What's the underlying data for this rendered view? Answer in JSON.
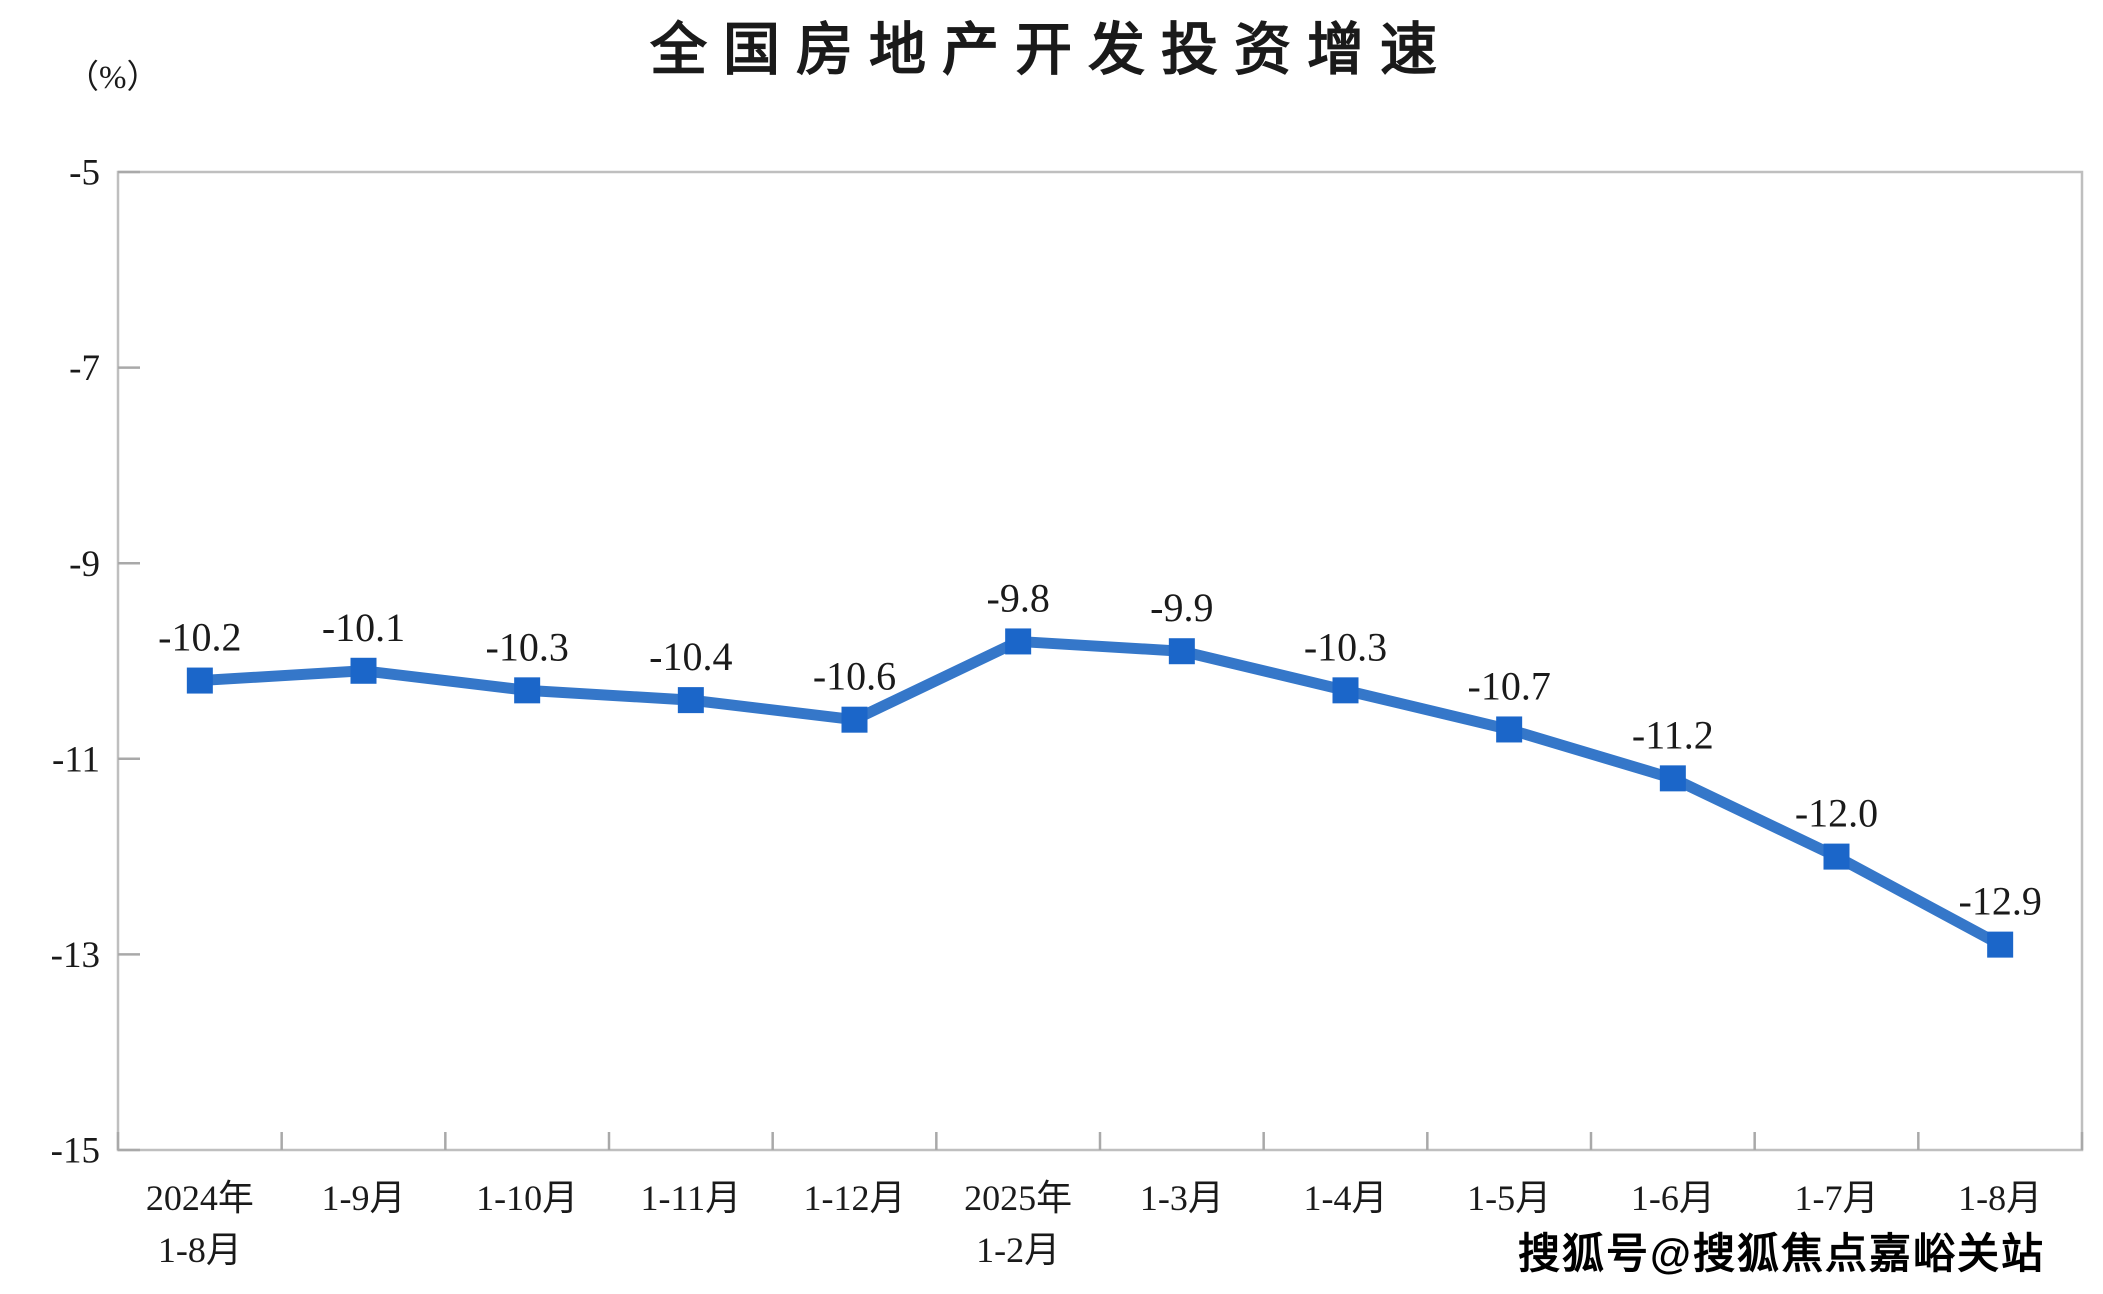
{
  "page": {
    "watermark": "搜狐号@搜狐焦点嘉峪关站"
  },
  "chart_data": {
    "type": "line",
    "title": "全国房地产开发投资增速",
    "unit": "（%）",
    "categories": [
      "2024年\n1-8月",
      "1-9月",
      "1-10月",
      "1-11月",
      "1-12月",
      "2025年\n1-2月",
      "1-3月",
      "1-4月",
      "1-5月",
      "1-6月",
      "1-7月",
      "1-8月"
    ],
    "values": [
      -10.2,
      -10.1,
      -10.3,
      -10.4,
      -10.6,
      -9.8,
      -9.9,
      -10.3,
      -10.7,
      -11.2,
      -12.0,
      -12.9
    ],
    "data_labels": [
      "-10.2",
      "-10.1",
      "-10.3",
      "-10.4",
      "-10.6",
      "-9.8",
      "-9.9",
      "-10.3",
      "-10.7",
      "-11.2",
      "-12.0",
      "-12.9"
    ],
    "xlabel": "",
    "ylabel": "（%）",
    "ylim": [
      -15,
      -5
    ],
    "yticks": [
      -5,
      -7,
      -9,
      -11,
      -13,
      -15
    ],
    "ytick_labels": [
      "-5",
      "-7",
      "-9",
      "-11",
      "-13",
      "-15"
    ],
    "grid": false,
    "legend_position": "none",
    "colors": {
      "line": "#3577C9",
      "marker": "#1B66C9",
      "axis": "#BFBFBF",
      "tick": "#A9A9A9",
      "text": "#1A1A1A"
    }
  }
}
